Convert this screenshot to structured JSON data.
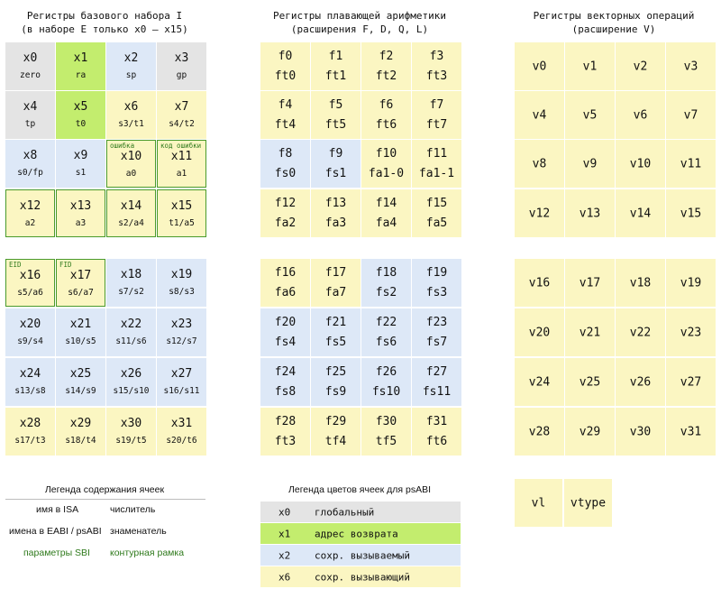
{
  "base_set": {
    "title_line1": "Регистры базового набора I",
    "title_line2": "(в наборе E только x0 – x15)",
    "cells": [
      {
        "name": "x0",
        "abi": "zero",
        "color": "#e4e4e4"
      },
      {
        "name": "x1",
        "abi": "ra",
        "color": "#c3ed6e"
      },
      {
        "name": "x2",
        "abi": "sp",
        "color": "#dde8f7"
      },
      {
        "name": "x3",
        "abi": "gp",
        "color": "#e4e4e4"
      },
      {
        "name": "x4",
        "abi": "tp",
        "color": "#e4e4e4"
      },
      {
        "name": "x5",
        "abi": "t0",
        "color": "#c3ed6e"
      },
      {
        "name": "x6",
        "abi": "s3/t1",
        "color": "#fbf6c2"
      },
      {
        "name": "x7",
        "abi": "s4/t2",
        "color": "#fbf6c2"
      },
      {
        "name": "x8",
        "abi": "s0/fp",
        "color": "#dde8f7"
      },
      {
        "name": "x9",
        "abi": "s1",
        "color": "#dde8f7"
      },
      {
        "name": "x10",
        "abi": "a0",
        "sbi": "ошибка",
        "color": "#fbf6c2"
      },
      {
        "name": "x11",
        "abi": "a1",
        "sbi": "код ошибки",
        "color": "#fbf6c2"
      },
      {
        "name": "x12",
        "abi": "a2",
        "color": "#fbf6c2"
      },
      {
        "name": "x13",
        "abi": "a3",
        "color": "#fbf6c2"
      },
      {
        "name": "x14",
        "abi": "s2/a4",
        "color": "#fbf6c2"
      },
      {
        "name": "x15",
        "abi": "t1/a5",
        "color": "#fbf6c2"
      },
      {
        "name": "x16",
        "abi": "s5/a6",
        "sbi": "EID",
        "color": "#fbf6c2"
      },
      {
        "name": "x17",
        "abi": "s6/a7",
        "sbi": "FID",
        "color": "#fbf6c2"
      },
      {
        "name": "x18",
        "abi": "s7/s2",
        "color": "#dde8f7"
      },
      {
        "name": "x19",
        "abi": "s8/s3",
        "color": "#dde8f7"
      },
      {
        "name": "x20",
        "abi": "s9/s4",
        "color": "#dde8f7"
      },
      {
        "name": "x21",
        "abi": "s10/s5",
        "color": "#dde8f7"
      },
      {
        "name": "x22",
        "abi": "s11/s6",
        "color": "#dde8f7"
      },
      {
        "name": "x23",
        "abi": "s12/s7",
        "color": "#dde8f7"
      },
      {
        "name": "x24",
        "abi": "s13/s8",
        "color": "#dde8f7"
      },
      {
        "name": "x25",
        "abi": "s14/s9",
        "color": "#dde8f7"
      },
      {
        "name": "x26",
        "abi": "s15/s10",
        "color": "#dde8f7"
      },
      {
        "name": "x27",
        "abi": "s16/s11",
        "color": "#dde8f7"
      },
      {
        "name": "x28",
        "abi": "s17/t3",
        "color": "#fbf6c2"
      },
      {
        "name": "x29",
        "abi": "s18/t4",
        "color": "#fbf6c2"
      },
      {
        "name": "x30",
        "abi": "s19/t5",
        "color": "#fbf6c2"
      },
      {
        "name": "x31",
        "abi": "s20/t6",
        "color": "#fbf6c2"
      }
    ]
  },
  "float_set": {
    "title_line1": "Регистры плавающей арифметики",
    "title_line2": "(расширения F, D, Q, L)",
    "cells": [
      {
        "name": "f0",
        "abi": "ft0",
        "color": "#fbf6c2"
      },
      {
        "name": "f1",
        "abi": "ft1",
        "color": "#fbf6c2"
      },
      {
        "name": "f2",
        "abi": "ft2",
        "color": "#fbf6c2"
      },
      {
        "name": "f3",
        "abi": "ft3",
        "color": "#fbf6c2"
      },
      {
        "name": "f4",
        "abi": "ft4",
        "color": "#fbf6c2"
      },
      {
        "name": "f5",
        "abi": "ft5",
        "color": "#fbf6c2"
      },
      {
        "name": "f6",
        "abi": "ft6",
        "color": "#fbf6c2"
      },
      {
        "name": "f7",
        "abi": "ft7",
        "color": "#fbf6c2"
      },
      {
        "name": "f8",
        "abi": "fs0",
        "color": "#dde8f7"
      },
      {
        "name": "f9",
        "abi": "fs1",
        "color": "#dde8f7"
      },
      {
        "name": "f10",
        "abi": "fa1-0",
        "color": "#fbf6c2"
      },
      {
        "name": "f11",
        "abi": "fa1-1",
        "color": "#fbf6c2"
      },
      {
        "name": "f12",
        "abi": "fa2",
        "color": "#fbf6c2"
      },
      {
        "name": "f13",
        "abi": "fa3",
        "color": "#fbf6c2"
      },
      {
        "name": "f14",
        "abi": "fa4",
        "color": "#fbf6c2"
      },
      {
        "name": "f15",
        "abi": "fa5",
        "color": "#fbf6c2"
      },
      {
        "name": "f16",
        "abi": "fa6",
        "color": "#fbf6c2"
      },
      {
        "name": "f17",
        "abi": "fa7",
        "color": "#fbf6c2"
      },
      {
        "name": "f18",
        "abi": "fs2",
        "color": "#dde8f7"
      },
      {
        "name": "f19",
        "abi": "fs3",
        "color": "#dde8f7"
      },
      {
        "name": "f20",
        "abi": "fs4",
        "color": "#dde8f7"
      },
      {
        "name": "f21",
        "abi": "fs5",
        "color": "#dde8f7"
      },
      {
        "name": "f22",
        "abi": "fs6",
        "color": "#dde8f7"
      },
      {
        "name": "f23",
        "abi": "fs7",
        "color": "#dde8f7"
      },
      {
        "name": "f24",
        "abi": "fs8",
        "color": "#dde8f7"
      },
      {
        "name": "f25",
        "abi": "fs9",
        "color": "#dde8f7"
      },
      {
        "name": "f26",
        "abi": "fs10",
        "color": "#dde8f7"
      },
      {
        "name": "f27",
        "abi": "fs11",
        "color": "#dde8f7"
      },
      {
        "name": "f28",
        "abi": "ft3",
        "color": "#fbf6c2"
      },
      {
        "name": "f29",
        "abi": "tf4",
        "color": "#fbf6c2"
      },
      {
        "name": "f30",
        "abi": "tf5",
        "color": "#fbf6c2"
      },
      {
        "name": "f31",
        "abi": "ft6",
        "color": "#fbf6c2"
      }
    ]
  },
  "vector_set": {
    "title_line1": "Регистры векторных операций",
    "title_line2": "(расширение V)",
    "cells": [
      "v0",
      "v1",
      "v2",
      "v3",
      "v4",
      "v5",
      "v6",
      "v7",
      "v8",
      "v9",
      "v10",
      "v11",
      "v12",
      "v13",
      "v14",
      "v15",
      "v16",
      "v17",
      "v18",
      "v19",
      "v20",
      "v21",
      "v22",
      "v23",
      "v24",
      "v25",
      "v26",
      "v27",
      "v28",
      "v29",
      "v30",
      "v31"
    ],
    "extra": [
      "vl",
      "vtype"
    ]
  },
  "content_legend": {
    "title": "Легенда содержания ячеек",
    "name_isa": "имя в ISA",
    "numerator": "числитель",
    "name_eabi": "имена в EABI / psABI",
    "denominator": "знаменатель",
    "sbi_params": "параметры SBI",
    "outline_frame": "контурная рамка"
  },
  "color_legend": {
    "title": "Легенда цветов ячеек для psABI",
    "rows": [
      {
        "reg": "x0",
        "label": "глобальный",
        "color": "#e4e4e4"
      },
      {
        "reg": "x1",
        "label": "адрес возврата",
        "color": "#c3ed6e"
      },
      {
        "reg": "x2",
        "label": "сохр. вызываемый",
        "color": "#dde8f7"
      },
      {
        "reg": "x6",
        "label": "сохр. вызывающий",
        "color": "#fbf6c2"
      }
    ]
  }
}
